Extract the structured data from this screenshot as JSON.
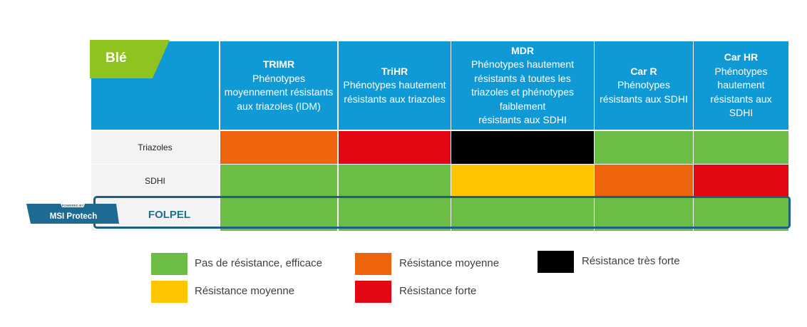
{
  "crop": "Blé",
  "badge": {
    "line1": "POWERED BY",
    "line2": "MSI Protech"
  },
  "chart_data": {
    "type": "table",
    "columns": [
      {
        "title": "TRIMR",
        "lines": [
          "Phénotypes",
          "moyennement résistants",
          "aux triazoles (IDM)"
        ]
      },
      {
        "title": "TriHR",
        "lines": [
          "Phénotypes hautement",
          "résistants aux triazoles"
        ]
      },
      {
        "title": "MDR",
        "lines": [
          "Phénotypes hautement",
          "résistants à toutes les",
          "triazoles et phénotypes",
          "faiblement",
          "résistants aux SDHI"
        ]
      },
      {
        "title": "Car R",
        "lines": [
          "Phénotypes",
          "résistants aux SDHI"
        ]
      },
      {
        "title": "Car HR",
        "lines": [
          "Phénotypes",
          "hautement",
          "résistants aux",
          "SDHI"
        ]
      }
    ],
    "rows": [
      {
        "label": "Triazoles",
        "levels": [
          "orange",
          "red",
          "black",
          "green",
          "green"
        ]
      },
      {
        "label": "SDHI",
        "levels": [
          "green",
          "green",
          "yellow",
          "orange",
          "red"
        ]
      },
      {
        "label": "FOLPEL",
        "levels": [
          "green",
          "green",
          "green",
          "green",
          "green"
        ]
      }
    ],
    "colors": {
      "green": "#6cbd45",
      "yellow": "#ffc500",
      "orange": "#ed640d",
      "red": "#e30613",
      "black": "#000000"
    },
    "legend": [
      {
        "color": "green",
        "label": "Pas de résistance, efficace"
      },
      {
        "color": "orange",
        "label": "Résistance moyenne"
      },
      {
        "color": "black",
        "label": "Résistance très forte"
      },
      {
        "color": "yellow",
        "label": "Résistance moyenne"
      },
      {
        "color": "red",
        "label": "Résistance forte"
      }
    ]
  }
}
